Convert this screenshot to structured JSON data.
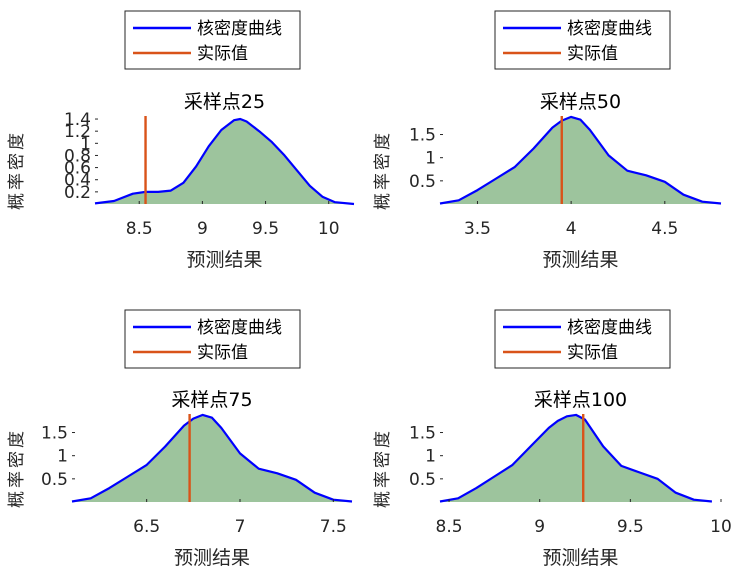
{
  "legend": {
    "kde_label": "核密度曲线",
    "actual_label": "实际值",
    "kde_color": "#0000ff",
    "actual_color": "#d95319",
    "fill_color": "#9dc49d"
  },
  "chart_data": [
    {
      "type": "area",
      "title": "采样点25",
      "xlabel": "预测结果",
      "ylabel": "概率密度",
      "xlim": [
        8.15,
        10.2
      ],
      "ylim": [
        0,
        1.45
      ],
      "xticks": [
        "8.5",
        "9",
        "9.5",
        "10"
      ],
      "xtick_values": [
        8.5,
        9,
        9.5,
        10
      ],
      "yticks": [
        "0.2",
        "0.4",
        "0.6",
        "0.8",
        "1",
        "1.2",
        "1.4"
      ],
      "ytick_values": [
        0.2,
        0.4,
        0.6,
        0.8,
        1,
        1.2,
        1.4
      ],
      "actual": 8.55,
      "x": [
        8.15,
        8.3,
        8.45,
        8.55,
        8.65,
        8.75,
        8.85,
        8.95,
        9.05,
        9.15,
        9.25,
        9.3,
        9.35,
        9.45,
        9.55,
        9.65,
        9.75,
        9.85,
        9.95,
        10.05,
        10.2
      ],
      "y": [
        0.01,
        0.05,
        0.17,
        0.2,
        0.2,
        0.22,
        0.35,
        0.62,
        0.95,
        1.22,
        1.38,
        1.4,
        1.36,
        1.2,
        1.02,
        0.8,
        0.55,
        0.3,
        0.12,
        0.03,
        0.0
      ]
    },
    {
      "type": "area",
      "title": "采样点50",
      "xlabel": "预测结果",
      "ylabel": "概率密度",
      "xlim": [
        3.3,
        4.8
      ],
      "ylim": [
        0,
        1.9
      ],
      "xticks": [
        "3.5",
        "4",
        "4.5"
      ],
      "xtick_values": [
        3.5,
        4,
        4.5
      ],
      "yticks": [
        "0.5",
        "1",
        "1.5"
      ],
      "ytick_values": [
        0.5,
        1,
        1.5
      ],
      "actual": 3.95,
      "x": [
        3.3,
        3.4,
        3.5,
        3.6,
        3.7,
        3.8,
        3.9,
        3.95,
        4.0,
        4.05,
        4.1,
        4.2,
        4.3,
        4.4,
        4.5,
        4.6,
        4.7,
        4.8
      ],
      "y": [
        0.01,
        0.08,
        0.3,
        0.55,
        0.8,
        1.2,
        1.65,
        1.8,
        1.88,
        1.82,
        1.6,
        1.05,
        0.72,
        0.62,
        0.48,
        0.2,
        0.05,
        0.01
      ]
    },
    {
      "type": "area",
      "title": "采样点75",
      "xlabel": "预测结果",
      "ylabel": "概率密度",
      "xlim": [
        6.1,
        7.6
      ],
      "ylim": [
        0,
        1.9
      ],
      "xticks": [
        "6.5",
        "7",
        "7.5"
      ],
      "xtick_values": [
        6.5,
        7,
        7.5
      ],
      "yticks": [
        "0.5",
        "1",
        "1.5"
      ],
      "ytick_values": [
        0.5,
        1,
        1.5
      ],
      "actual": 6.73,
      "x": [
        6.1,
        6.2,
        6.3,
        6.4,
        6.5,
        6.6,
        6.7,
        6.75,
        6.8,
        6.85,
        6.9,
        7.0,
        7.1,
        7.2,
        7.3,
        7.4,
        7.5,
        7.6
      ],
      "y": [
        0.01,
        0.08,
        0.3,
        0.55,
        0.8,
        1.2,
        1.65,
        1.8,
        1.88,
        1.82,
        1.6,
        1.05,
        0.72,
        0.62,
        0.48,
        0.2,
        0.05,
        0.01
      ]
    },
    {
      "type": "area",
      "title": "采样点100",
      "xlabel": "预测结果",
      "ylabel": "概率密度",
      "xlim": [
        8.45,
        10.0
      ],
      "ylim": [
        0,
        1.9
      ],
      "xticks": [
        "8.5",
        "9",
        "9.5",
        "10"
      ],
      "xtick_values": [
        8.5,
        9,
        9.5,
        10
      ],
      "yticks": [
        "0.5",
        "1",
        "1.5"
      ],
      "ytick_values": [
        0.5,
        1,
        1.5
      ],
      "actual": 9.24,
      "x": [
        8.45,
        8.55,
        8.65,
        8.75,
        8.85,
        8.95,
        9.05,
        9.1,
        9.15,
        9.2,
        9.25,
        9.35,
        9.45,
        9.55,
        9.65,
        9.75,
        9.85,
        9.95
      ],
      "y": [
        0.01,
        0.08,
        0.3,
        0.55,
        0.8,
        1.2,
        1.6,
        1.75,
        1.85,
        1.88,
        1.78,
        1.2,
        0.78,
        0.64,
        0.5,
        0.2,
        0.05,
        0.01
      ]
    }
  ]
}
